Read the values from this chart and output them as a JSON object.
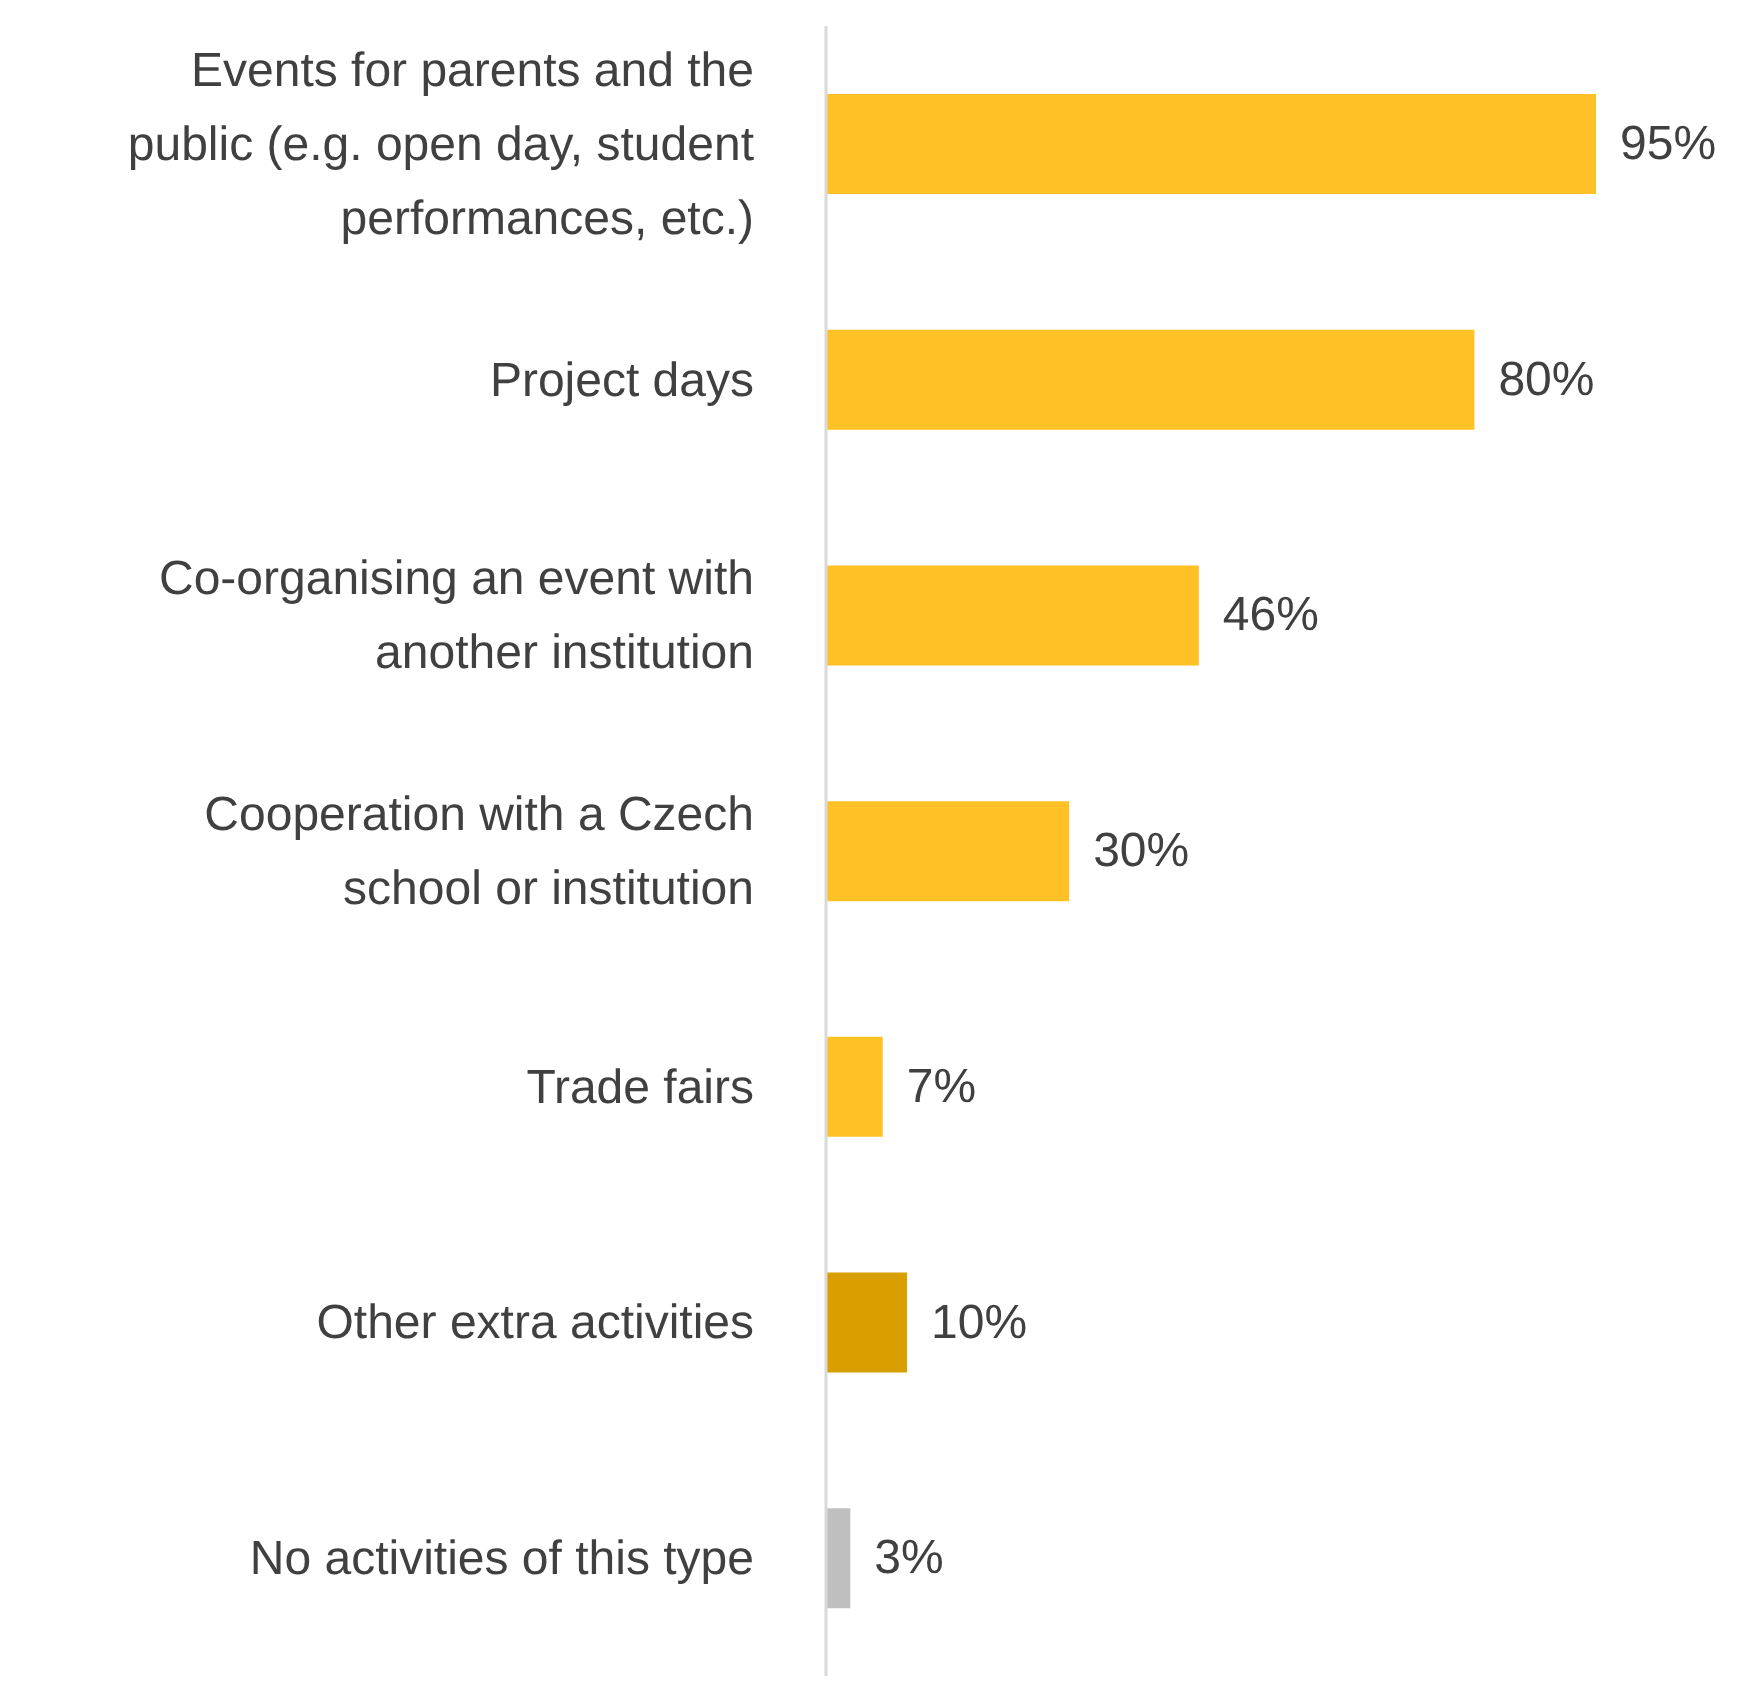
{
  "chart_data": {
    "type": "bar",
    "orientation": "horizontal",
    "categories": [
      "Events for parents and the public (e.g. open day, student performances, etc.)",
      "Project days",
      "Co-organising an event with another institution",
      "Cooperation with a Czech school or institution",
      "Trade fairs",
      "Other extra activities",
      "No activities of this type"
    ],
    "values": [
      95,
      80,
      46,
      30,
      7,
      10,
      3
    ],
    "colors": [
      "#ffc125",
      "#ffc125",
      "#ffc125",
      "#ffc125",
      "#ffc125",
      "#d99e00",
      "#bfbfbf"
    ],
    "value_labels": [
      "95%",
      "80%",
      "46%",
      "30%",
      "7%",
      "10%",
      "3%"
    ],
    "tick_labels": "y",
    "grid": false
  }
}
